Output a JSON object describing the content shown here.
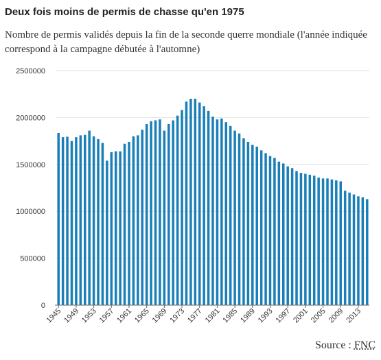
{
  "title": "Deux fois moins de permis de chasse qu'en 1975",
  "subtitle": "Nombre de permis validés depuis la fin de la seconde querre mondiale (l'année indiquée correspond à la campagne débutée à l'automne)",
  "source": {
    "prefix": "Source : ",
    "name": "FNC"
  },
  "colors": {
    "bar": "#1a7fb8",
    "axis": "#666666",
    "grid": "#e2e2e2",
    "tick_text": "#333333"
  },
  "chart_data": {
    "type": "bar",
    "categories": [
      "1945",
      "1946",
      "1947",
      "1948",
      "1949",
      "1950",
      "1951",
      "1952",
      "1953",
      "1954",
      "1955",
      "1956",
      "1957",
      "1958",
      "1959",
      "1960",
      "1961",
      "1962",
      "1963",
      "1964",
      "1965",
      "1966",
      "1967",
      "1968",
      "1969",
      "1970",
      "1971",
      "1972",
      "1973",
      "1974",
      "1975",
      "1976",
      "1977",
      "1978",
      "1979",
      "1980",
      "1981",
      "1982",
      "1983",
      "1984",
      "1985",
      "1986",
      "1987",
      "1988",
      "1989",
      "1990",
      "1991",
      "1992",
      "1993",
      "1994",
      "1995",
      "1996",
      "1997",
      "1998",
      "1999",
      "2000",
      "2001",
      "2002",
      "2003",
      "2004",
      "2005",
      "2006",
      "2007",
      "2008",
      "2009",
      "2010",
      "2011",
      "2012",
      "2013",
      "2014",
      "2015"
    ],
    "values": [
      1835000,
      1790000,
      1795000,
      1750000,
      1790000,
      1810000,
      1815000,
      1860000,
      1800000,
      1770000,
      1730000,
      1540000,
      1630000,
      1640000,
      1640000,
      1720000,
      1740000,
      1800000,
      1810000,
      1870000,
      1930000,
      1960000,
      1970000,
      1980000,
      1860000,
      1930000,
      1970000,
      2020000,
      2080000,
      2170000,
      2200000,
      2200000,
      2160000,
      2120000,
      2070000,
      2010000,
      1980000,
      1990000,
      1950000,
      1910000,
      1860000,
      1830000,
      1780000,
      1740000,
      1710000,
      1690000,
      1650000,
      1620000,
      1590000,
      1570000,
      1530000,
      1510000,
      1480000,
      1460000,
      1430000,
      1410000,
      1400000,
      1390000,
      1380000,
      1360000,
      1350000,
      1350000,
      1340000,
      1330000,
      1320000,
      1220000,
      1200000,
      1180000,
      1160000,
      1150000,
      1130000
    ],
    "title": "",
    "xlabel": "",
    "ylabel": "",
    "ylim": [
      0,
      2500000
    ],
    "yticks": [
      0,
      500000,
      1000000,
      1500000,
      2000000,
      2500000
    ],
    "ytick_labels": [
      "0",
      "500000",
      "1000000",
      "1500000",
      "2000000",
      "2500000"
    ],
    "xtick_labels": [
      "1945",
      "1949",
      "1953",
      "1957",
      "1961",
      "1965",
      "1969",
      "1973",
      "1977",
      "1981",
      "1985",
      "1989",
      "1993",
      "1997",
      "2001",
      "2005",
      "2009",
      "2013"
    ],
    "grid": true,
    "legend": "none"
  }
}
